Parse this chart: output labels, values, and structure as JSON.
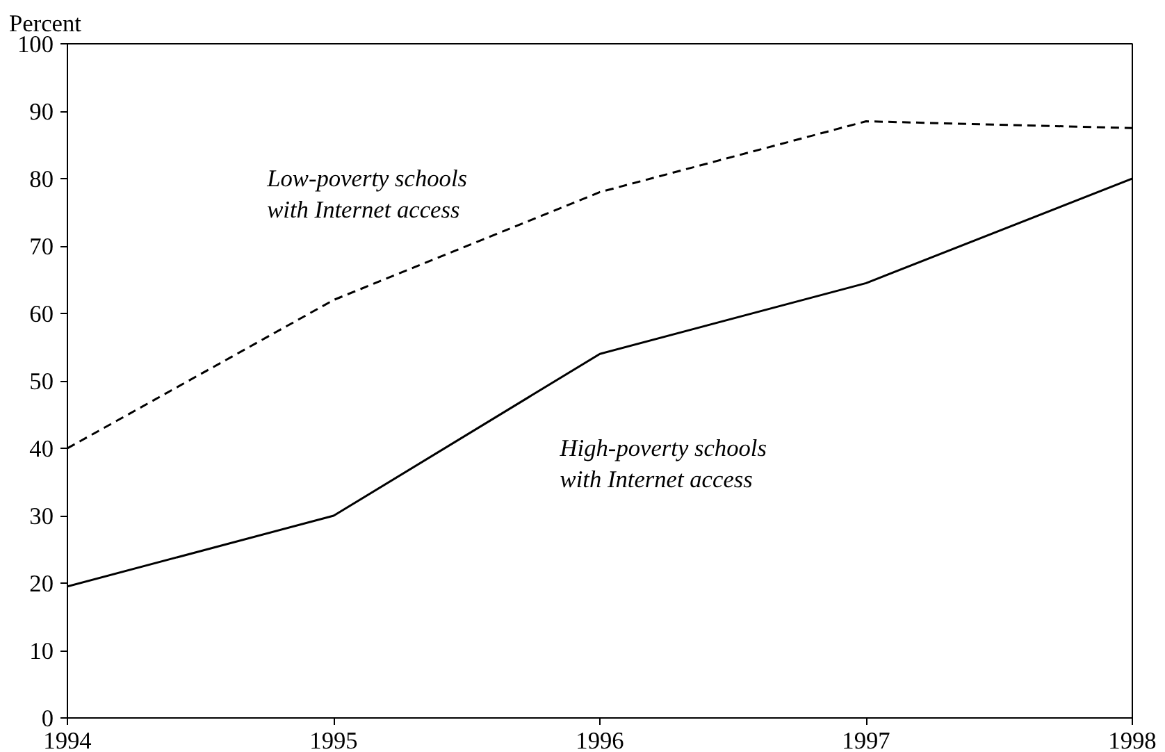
{
  "chart_data": {
    "type": "line",
    "ylabel": "Percent",
    "x": [
      1994,
      1995,
      1996,
      1997,
      1998
    ],
    "xlim": [
      1994,
      1998
    ],
    "xticks": [
      1994,
      1995,
      1996,
      1997,
      1998
    ],
    "ylim": [
      0,
      100
    ],
    "yticks": [
      0,
      10,
      20,
      30,
      40,
      50,
      60,
      70,
      80,
      90,
      100
    ],
    "grid": false,
    "marker": "none",
    "series": [
      {
        "name": "Low-poverty schools\nwith Internet access",
        "color": "#000000",
        "line_style": "dashed",
        "values": [
          40,
          62,
          78,
          88.5,
          87.5
        ]
      },
      {
        "name": "High-poverty schools\nwith Internet access",
        "color": "#000000",
        "line_style": "solid",
        "values": [
          19.5,
          30,
          54,
          64.5,
          80
        ]
      }
    ]
  }
}
